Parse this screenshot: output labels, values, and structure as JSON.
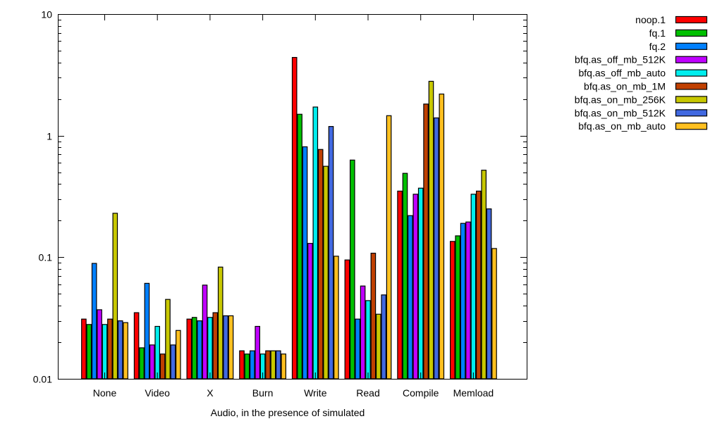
{
  "chart_data": {
    "type": "bar",
    "title": "",
    "xlabel": "Audio, in the presence of simulated",
    "ylabel": "",
    "yscale": "log",
    "ylim": [
      0.01,
      10
    ],
    "yticks": [
      0.01,
      0.1,
      1,
      10
    ],
    "ytick_labels": [
      "0.01",
      "0.1",
      "1",
      "10"
    ],
    "legend_position": "top-right outside",
    "categories": [
      "None",
      "Video",
      "X",
      "Burn",
      "Write",
      "Read",
      "Compile",
      "Memload"
    ],
    "series": [
      {
        "name": "noop.1",
        "color": "#ff0000",
        "values": [
          0.031,
          0.035,
          0.031,
          0.017,
          4.4,
          0.095,
          0.35,
          0.135
        ]
      },
      {
        "name": "fq.1",
        "color": "#00c000",
        "values": [
          0.028,
          0.018,
          0.032,
          0.016,
          1.5,
          0.63,
          0.49,
          0.15
        ]
      },
      {
        "name": "fq.2",
        "color": "#0080ff",
        "values": [
          0.089,
          0.061,
          0.03,
          0.017,
          0.81,
          0.031,
          0.22,
          0.19
        ]
      },
      {
        "name": "bfq.as_off_mb_512K",
        "color": "#c000ff",
        "values": [
          0.037,
          0.019,
          0.059,
          0.027,
          0.13,
          0.058,
          0.33,
          0.195
        ]
      },
      {
        "name": "bfq.as_off_mb_auto",
        "color": "#00eeee",
        "values": [
          0.028,
          0.027,
          0.032,
          0.016,
          1.72,
          0.044,
          0.37,
          0.33
        ]
      },
      {
        "name": "bfq.as_on_mb_1M",
        "color": "#c04000",
        "values": [
          0.031,
          0.016,
          0.035,
          0.017,
          0.77,
          0.108,
          1.82,
          0.35
        ]
      },
      {
        "name": "bfq.as_on_mb_256K",
        "color": "#c8c800",
        "values": [
          0.23,
          0.045,
          0.083,
          0.017,
          0.56,
          0.034,
          2.8,
          0.52
        ]
      },
      {
        "name": "bfq.as_on_mb_512K",
        "color": "#4169e1",
        "values": [
          0.03,
          0.019,
          0.033,
          0.017,
          1.19,
          0.049,
          1.4,
          0.25
        ]
      },
      {
        "name": "bfq.as_on_mb_auto",
        "color": "#ffc020",
        "values": [
          0.029,
          0.025,
          0.033,
          0.016,
          0.102,
          1.46,
          2.2,
          0.118
        ]
      }
    ]
  }
}
